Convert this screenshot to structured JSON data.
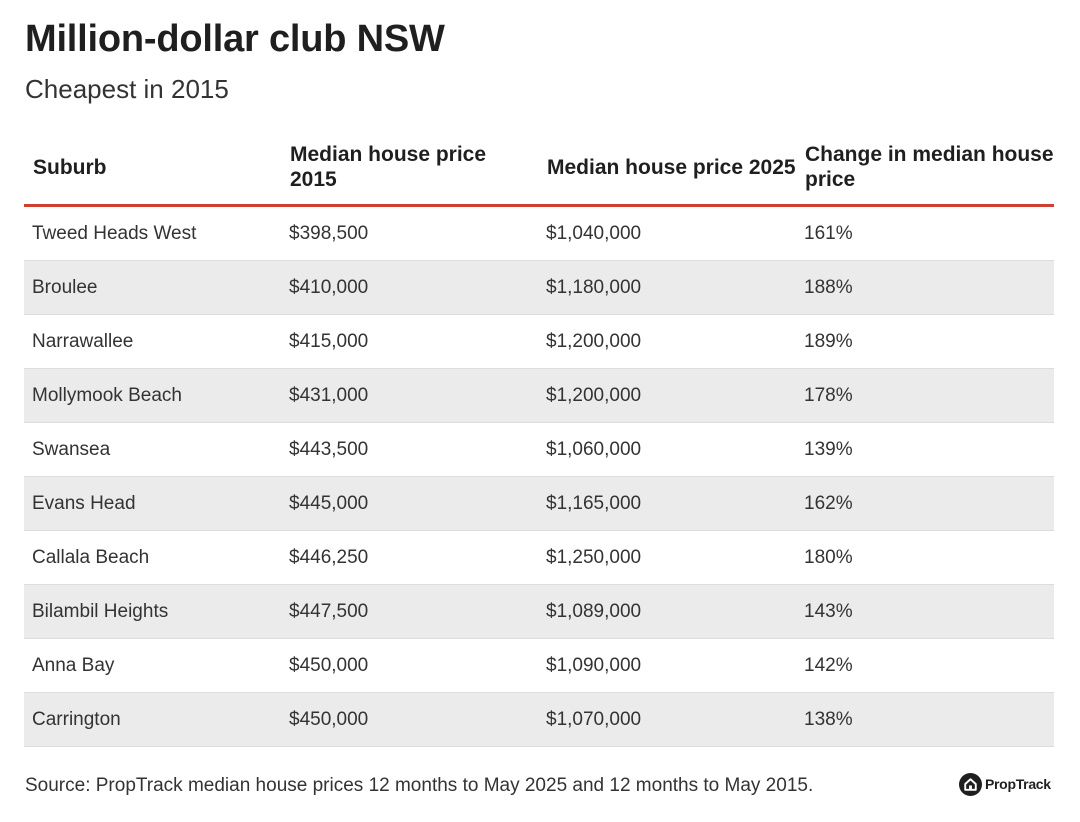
{
  "header": {
    "title": "Million-dollar club NSW",
    "subtitle": "Cheapest in 2015"
  },
  "columns": [
    "Suburb",
    "Median house price 2015",
    "Median house price 2025",
    "Change in median house price"
  ],
  "chart_data": {
    "type": "table",
    "title": "Million-dollar club NSW",
    "subtitle": "Cheapest in 2015",
    "columns": [
      "Suburb",
      "Median house price 2015",
      "Median house price 2025",
      "Change in median house price"
    ],
    "rows": [
      [
        "Tweed Heads West",
        "$398,500",
        "$1,040,000",
        "161%"
      ],
      [
        "Broulee",
        "$410,000",
        "$1,180,000",
        "188%"
      ],
      [
        "Narrawallee",
        "$415,000",
        "$1,200,000",
        "189%"
      ],
      [
        "Mollymook Beach",
        "$431,000",
        "$1,200,000",
        "178%"
      ],
      [
        "Swansea",
        "$443,500",
        "$1,060,000",
        "139%"
      ],
      [
        "Evans Head",
        "$445,000",
        "$1,165,000",
        "162%"
      ],
      [
        "Callala Beach",
        "$446,250",
        "$1,250,000",
        "180%"
      ],
      [
        "Bilambil Heights",
        "$447,500",
        "$1,089,000",
        "143%"
      ],
      [
        "Anna Bay",
        "$450,000",
        "$1,090,000",
        "142%"
      ],
      [
        "Carrington",
        "$450,000",
        "$1,070,000",
        "138%"
      ]
    ]
  },
  "footer": {
    "source": "Source: PropTrack median house prices 12 months to May 2025 and 12 months to May 2015.",
    "brand": "PropTrack",
    "brand_icon": "proptrack-house-logo-icon"
  },
  "colors": {
    "header_rule": "#d0402f",
    "alt_row": "#ebebeb",
    "text": "#333333"
  }
}
